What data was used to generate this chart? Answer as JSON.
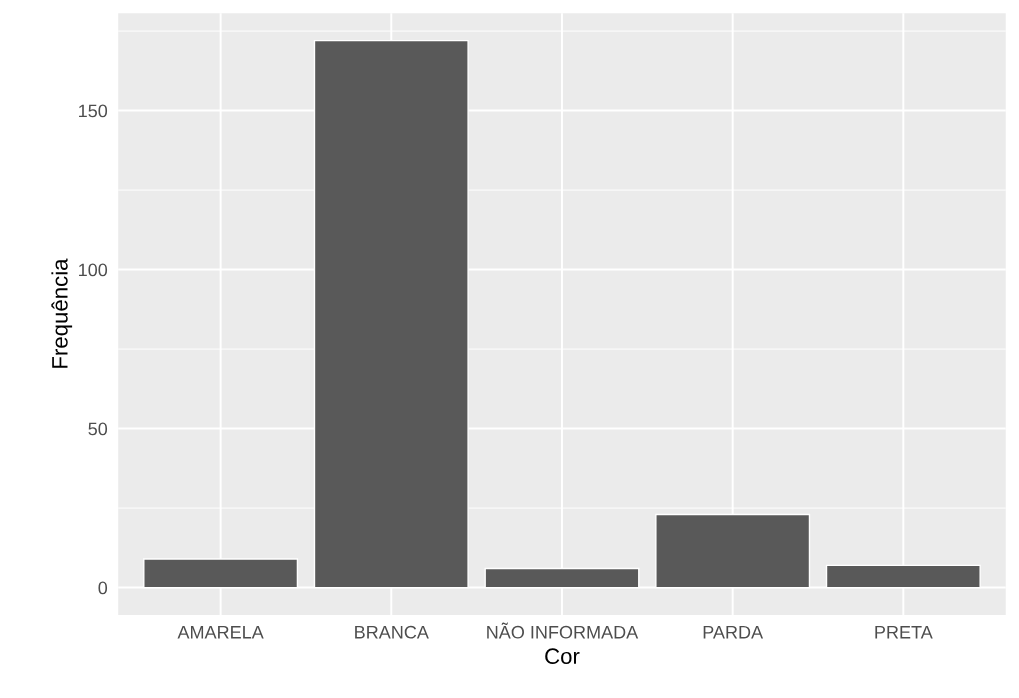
{
  "chart_data": {
    "type": "bar",
    "xlabel": "Cor",
    "ylabel": "Frequência",
    "categories": [
      "AMARELA",
      "BRANCA",
      "NÃO INFORMADA",
      "PARDA",
      "PRETA"
    ],
    "values": [
      9,
      172,
      6,
      23,
      7
    ],
    "color": "#595959",
    "ylim": [
      -8.6,
      180.6
    ],
    "yticks": [
      0,
      {
        "value": 25,
        "label": null
      },
      50,
      {
        "value": 75,
        "label": null
      },
      100,
      {
        "value": 125,
        "label": null
      },
      150,
      {
        "value": 175,
        "label": null
      }
    ],
    "grid": true
  }
}
